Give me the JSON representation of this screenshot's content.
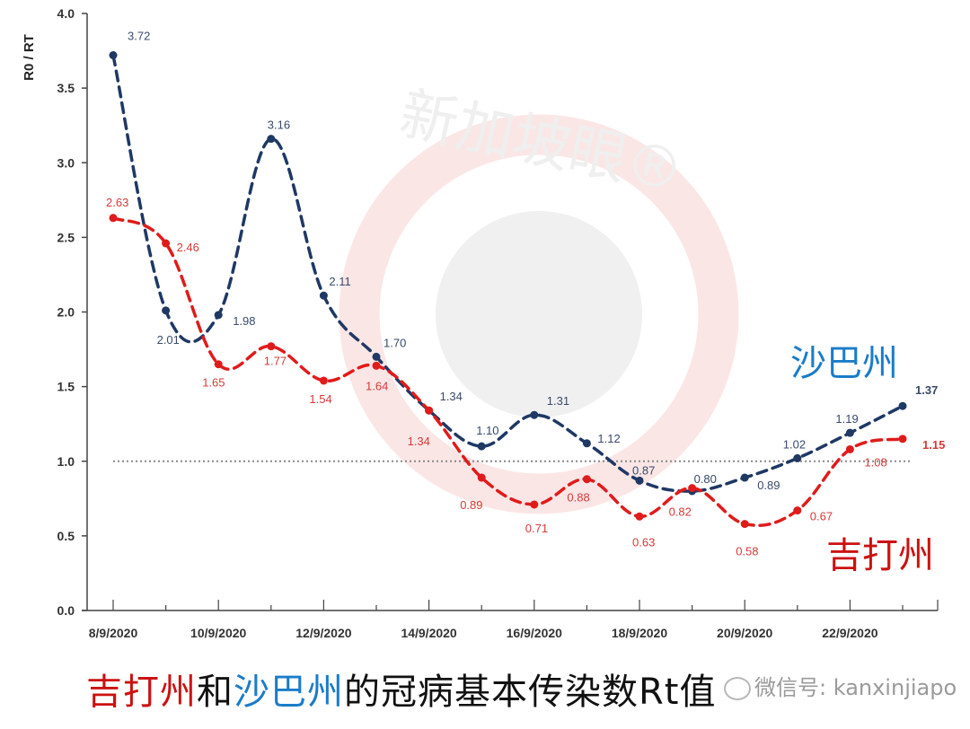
{
  "chart_data": {
    "type": "line",
    "title": "吉打州和沙巴州的冠病基本传染数Rt值",
    "xlabel": "",
    "ylabel": "R0 / RT",
    "ylim": [
      0,
      4.0
    ],
    "yticks": [
      "0.0",
      "0.5",
      "1.0",
      "1.5",
      "2.0",
      "2.5",
      "3.0",
      "3.5",
      "4.0"
    ],
    "xtick_labels": [
      "8/9/2020",
      "10/9/2020",
      "12/9/2020",
      "14/9/2020",
      "16/9/2020",
      "18/9/2020",
      "20/9/2020",
      "22/9/2020"
    ],
    "x": [
      "8/9/2020",
      "9/9/2020",
      "10/9/2020",
      "11/9/2020",
      "12/9/2020",
      "13/9/2020",
      "14/9/2020",
      "15/9/2020",
      "16/9/2020",
      "17/9/2020",
      "18/9/2020",
      "19/9/2020",
      "20/9/2020",
      "21/9/2020",
      "22/9/2020",
      "23/9/2020"
    ],
    "series": [
      {
        "name": "沙巴州",
        "color": "#1f3864",
        "values": [
          3.72,
          2.01,
          1.98,
          3.16,
          2.11,
          1.7,
          1.34,
          1.1,
          1.31,
          1.12,
          0.87,
          0.8,
          0.89,
          1.02,
          1.19,
          1.37
        ]
      },
      {
        "name": "吉打州",
        "color": "#e01b1b",
        "values": [
          2.63,
          2.46,
          1.65,
          1.77,
          1.54,
          1.64,
          1.34,
          0.89,
          0.71,
          0.88,
          0.63,
          0.82,
          0.58,
          0.67,
          1.08,
          1.15
        ]
      }
    ],
    "reference_line": {
      "y": 1.0,
      "style": "dotted",
      "color": "#888888"
    },
    "grid": false,
    "legend_position": "inline-right"
  },
  "labels": {
    "sabah": "沙巴州",
    "kedah": "吉打州",
    "caption_part1": "吉打州",
    "caption_part2": "和",
    "caption_part3": "沙巴州",
    "caption_part4": "的冠病基本传染数Rt值",
    "watermark_text": "新加坡眼®",
    "wechat": "微信号: kanxinjiapo"
  }
}
